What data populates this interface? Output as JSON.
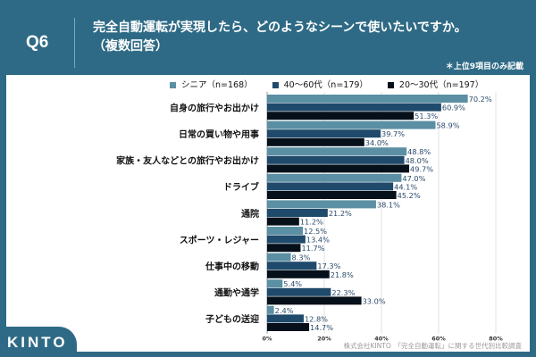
{
  "header": {
    "q_label": "Q6",
    "title_line1": "完全自動運転が実現したら、どのようなシーンで使いたいですか。",
    "title_line2": "（複数回答）",
    "note": "＊上位9項目のみ記載"
  },
  "footer": {
    "logo": "KINTO",
    "source": "株式会社KINTO　「完全自動運転」に関する世代別比較調査"
  },
  "chart_data": {
    "type": "bar",
    "orientation": "horizontal",
    "categories": [
      "自身の旅行やお出かけ",
      "日常の買い物や用事",
      "家族・友人などとの旅行やお出かけ",
      "ドライブ",
      "通院",
      "スポーツ・レジャー",
      "仕事中の移動",
      "通勤や通学",
      "子どもの送迎"
    ],
    "series": [
      {
        "name": "シニア（n=168）",
        "color": "#5b8fa3",
        "values": [
          70.2,
          58.9,
          48.8,
          47.0,
          38.1,
          12.5,
          8.3,
          5.4,
          2.4
        ]
      },
      {
        "name": "40〜60代（n=179）",
        "color": "#1f4a6b",
        "values": [
          60.9,
          39.7,
          48.0,
          44.1,
          21.2,
          13.4,
          17.3,
          22.3,
          12.8
        ]
      },
      {
        "name": "20〜30代（n=197）",
        "color": "#05101a",
        "values": [
          51.3,
          34.0,
          49.7,
          45.2,
          11.2,
          11.7,
          21.8,
          33.0,
          14.7
        ]
      }
    ],
    "xlim": [
      0,
      80
    ],
    "xticks": [
      "0%",
      "20%",
      "40%",
      "60%",
      "80%"
    ],
    "grid": true,
    "legend": "top",
    "label_color": "#2a4a6b"
  }
}
